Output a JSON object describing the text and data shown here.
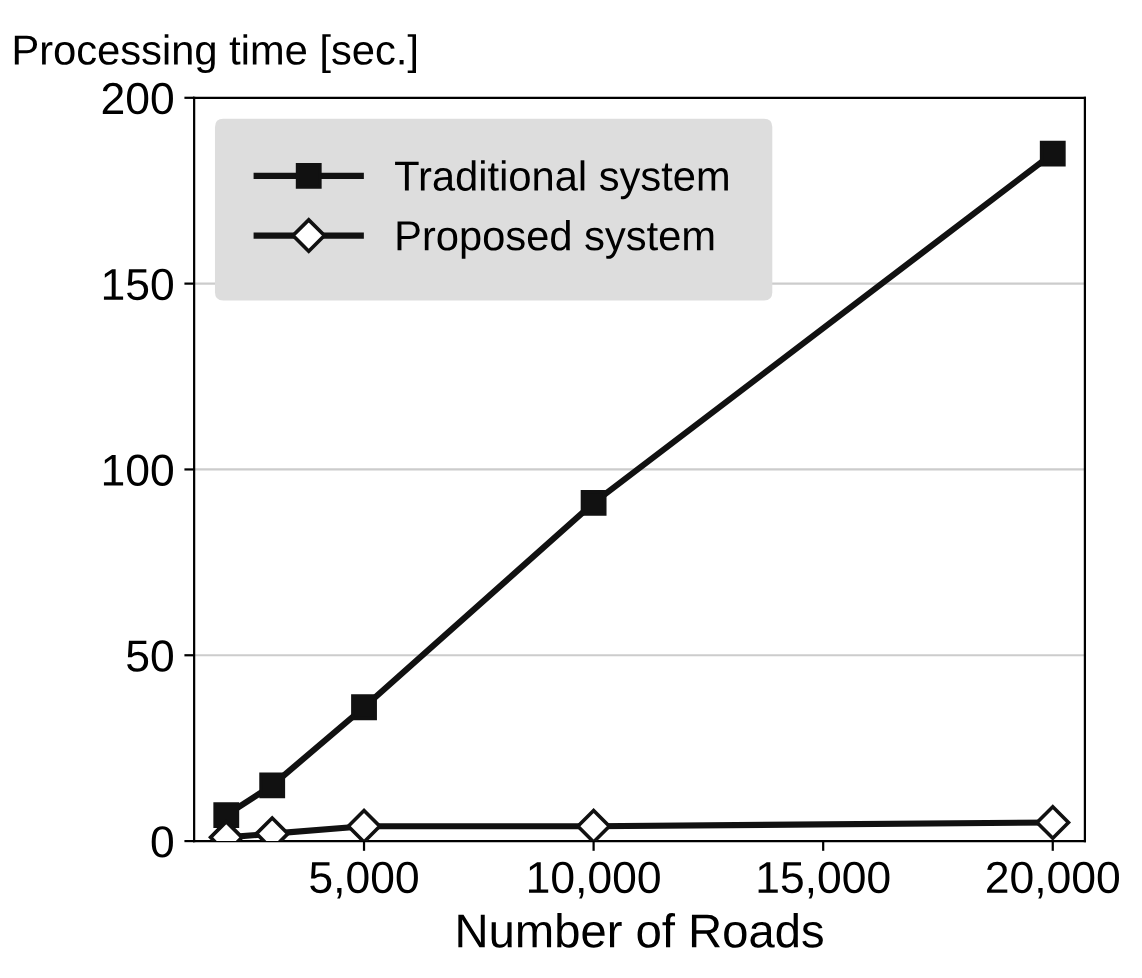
{
  "chart_data": {
    "type": "line",
    "ylabel": "Processing time [sec.]",
    "xlabel": "Number of Roads",
    "x": [
      2000,
      3000,
      5000,
      10000,
      20000
    ],
    "series": [
      {
        "name": "Traditional system",
        "color": "#111111",
        "values": [
          7,
          15,
          36,
          91,
          185
        ],
        "marker": "square"
      },
      {
        "name": "Proposed system",
        "color": "#111111",
        "values": [
          1,
          2,
          4,
          4,
          5
        ],
        "marker": "diamond"
      }
    ],
    "xlim": [
      1300,
      20700
    ],
    "xticks": [
      {
        "value": 5000,
        "label": "5,000"
      },
      {
        "value": 10000,
        "label": "10,000"
      },
      {
        "value": 15000,
        "label": "15,000"
      },
      {
        "value": 20000,
        "label": "20,000"
      }
    ],
    "ylim": [
      0,
      200
    ],
    "yticks": [
      0,
      50,
      100,
      150,
      200
    ],
    "grid": "y",
    "legend": "top left",
    "line_style": "solid"
  }
}
